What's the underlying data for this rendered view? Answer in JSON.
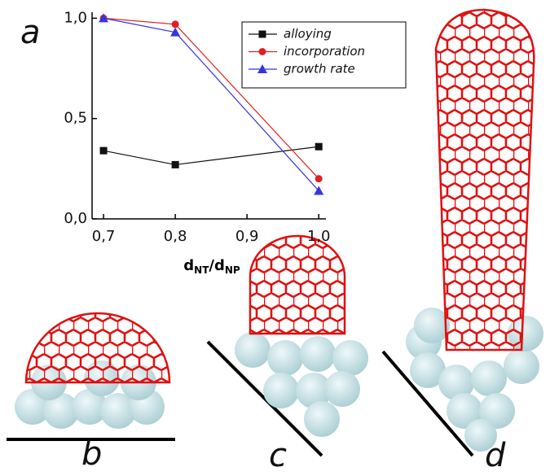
{
  "panel_labels": [
    "a",
    "b",
    "c",
    "d"
  ],
  "chart_data": {
    "type": "line",
    "xlabel_parts": [
      "d",
      "NT",
      "/d",
      "NP"
    ],
    "x": [
      0.7,
      0.8,
      1.0
    ],
    "series": [
      {
        "name": "alloying",
        "color": "#111111",
        "marker": "square",
        "values": [
          0.34,
          0.27,
          0.36
        ]
      },
      {
        "name": "incorporation",
        "color": "#e02020",
        "marker": "circle",
        "values": [
          1.0,
          0.97,
          0.2
        ]
      },
      {
        "name": "growth rate",
        "color": "#3535e0",
        "marker": "triangle",
        "values": [
          1.0,
          0.93,
          0.14
        ]
      }
    ],
    "xlim": [
      0.684,
      1.01
    ],
    "ylim": [
      0,
      1.03
    ],
    "xticks": [
      {
        "value": 0.7,
        "label": "0,7"
      },
      {
        "value": 0.8,
        "label": "0,8"
      },
      {
        "value": 0.9,
        "label": "0,9"
      },
      {
        "value": 1.0,
        "label": "1,0"
      }
    ],
    "yticks": [
      {
        "value": 0,
        "label": "0,0"
      },
      {
        "value": 0.5,
        "label": "0,5"
      },
      {
        "value": 1.0,
        "label": "1,0"
      }
    ],
    "legend": "upper right"
  }
}
